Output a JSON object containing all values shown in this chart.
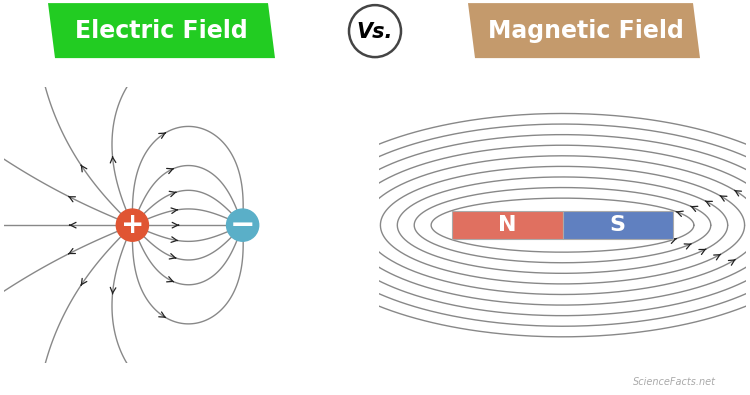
{
  "title_left": "Electric Field",
  "title_right": "Magnetic Field",
  "vs_text": "Vs.",
  "bg_color": "#ffffff",
  "green_color": "#22cc22",
  "brown_color": "#c49a6c",
  "vs_circle_color": "#444444",
  "pos_charge_color": "#e05533",
  "neg_charge_color": "#5aafc8",
  "magnet_N_color": "#e07060",
  "magnet_S_color": "#6080c0",
  "field_line_color": "#888888",
  "arrow_color": "#222222",
  "title_fontsize": 17,
  "vs_fontsize": 15,
  "watermark": "ScienceFacts.net"
}
